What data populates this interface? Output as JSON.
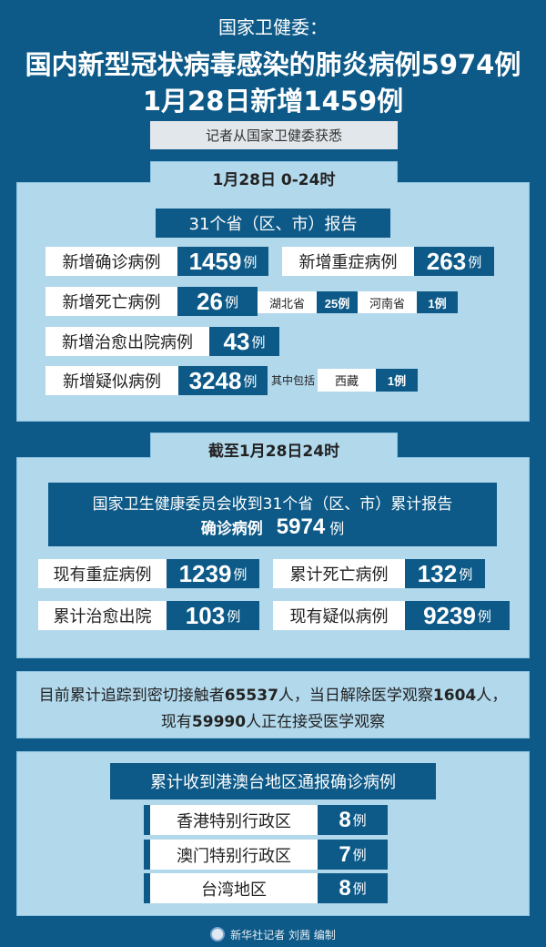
{
  "header": {
    "source": "国家卫健委：",
    "title_line1": "国内新型冠状病毒感染的肺炎病例5974例",
    "title_line2": "1月28日新增1459例",
    "subtitle": "记者从国家卫健委获悉"
  },
  "daily": {
    "tab": "1月28日 0-24时",
    "banner": "31个省（区、市）报告",
    "unit": "例",
    "new_confirmed": {
      "label": "新增确诊病例",
      "value": "1459"
    },
    "new_severe": {
      "label": "新增重症病例",
      "value": "263"
    },
    "new_deaths": {
      "label": "新增死亡病例",
      "value": "26",
      "breakdown": [
        {
          "region": "湖北省",
          "value": "25例"
        },
        {
          "region": "河南省",
          "value": "1例"
        }
      ]
    },
    "new_recovered": {
      "label": "新增治愈出院病例",
      "value": "43"
    },
    "new_suspected": {
      "label": "新增疑似病例",
      "value": "3248",
      "note": "其中包括",
      "breakdown": [
        {
          "region": "西藏",
          "value": "1例"
        }
      ]
    }
  },
  "cumulative": {
    "tab": "截至1月28日24时",
    "banner_line1": "国家卫生健康委员会收到31个省（区、市）累计报告",
    "confirmed_label": "确诊病例",
    "confirmed_value": "5974",
    "unit": "例",
    "items": [
      {
        "label": "现有重症病例",
        "value": "1239"
      },
      {
        "label": "累计死亡病例",
        "value": "132"
      },
      {
        "label": "累计治愈出院",
        "value": "103"
      },
      {
        "label": "现有疑似病例",
        "value": "9239"
      }
    ]
  },
  "contacts": {
    "line1_a": "目前累计追踪到密切接触者",
    "traced": "65537",
    "line1_b": "人，当日解除医学观察",
    "released": "1604",
    "line1_c": "人，",
    "line2_a": "现有",
    "under_observation": "59990",
    "line2_b": "人正在接受医学观察"
  },
  "hmt": {
    "title": "累计收到港澳台地区通报确诊病例",
    "unit": "例",
    "items": [
      {
        "region": "香港特别行政区",
        "value": "8"
      },
      {
        "region": "澳门特别行政区",
        "value": "7"
      },
      {
        "region": "台湾地区",
        "value": "8"
      }
    ]
  },
  "footer": {
    "credit": "新华社记者 刘茜 编制"
  },
  "colors": {
    "background": "#0d5a88",
    "panel": "#b2d8ec",
    "value_box": "#0d5a88",
    "label_box": "#ffffff"
  }
}
